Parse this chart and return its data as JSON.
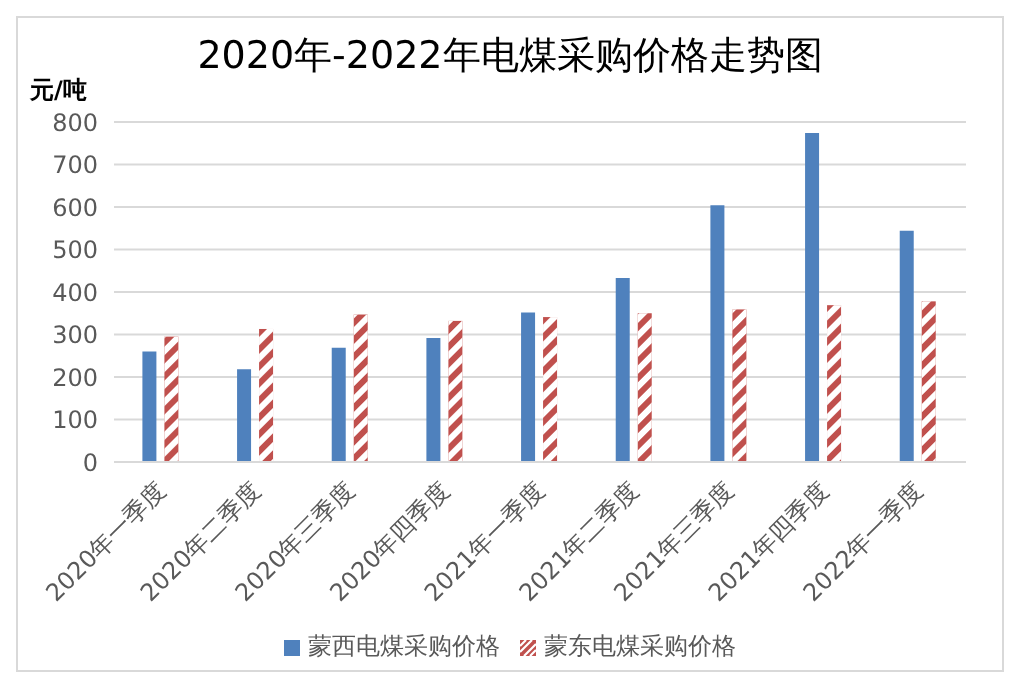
{
  "chart_data": {
    "type": "bar",
    "title": "2020年-2022年电煤采购价格走势图",
    "ylabel": "元/吨",
    "categories": [
      "2020年一季度",
      "2020年二季度",
      "2020年三季度",
      "2020年四季度",
      "2021年一季度",
      "2021年二季度",
      "2021年三季度",
      "2021年四季度",
      "2022年一季度"
    ],
    "series": [
      {
        "name": "蒙西电煤采购价格",
        "color": "#4f81bd",
        "values": [
          260,
          218,
          269,
          292,
          352,
          433,
          604,
          774,
          544
        ]
      },
      {
        "name": "蒙东电煤采购价格",
        "color": "#c0504d",
        "values": [
          295,
          313,
          347,
          332,
          341,
          350,
          359,
          369,
          378
        ]
      }
    ],
    "ylim": [
      0,
      800
    ],
    "yticks": [
      0,
      100,
      200,
      300,
      400,
      500,
      600,
      700,
      800
    ],
    "grid": "y",
    "legend": "bottom"
  }
}
